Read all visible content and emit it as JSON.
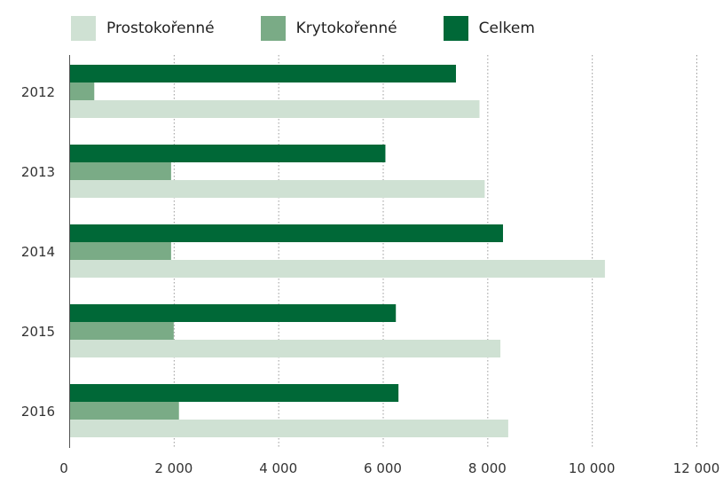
{
  "chart_data": {
    "type": "bar",
    "orientation": "horizontal",
    "categories": [
      "2012",
      "2013",
      "2014",
      "2015",
      "2016"
    ],
    "series": [
      {
        "name": "Celkem",
        "color": "#006837",
        "values": [
          7400,
          6050,
          8300,
          6250,
          6300
        ]
      },
      {
        "name": "Krytokořenné",
        "color": "#7aab86",
        "values": [
          480,
          1950,
          1950,
          2000,
          2100
        ]
      },
      {
        "name": "Prostokořenné",
        "color": "#cfe1d3",
        "values": [
          7850,
          7950,
          10250,
          8250,
          8400
        ]
      }
    ],
    "legend_order": [
      "Prostokořenné",
      "Krytokořenné",
      "Celkem"
    ],
    "xlim": [
      0,
      12000
    ],
    "xticks": [
      0,
      2000,
      4000,
      6000,
      8000,
      10000,
      12000
    ],
    "xtick_labels": [
      "0",
      "2 000",
      "4 000",
      "6 000",
      "8 000",
      "10 000",
      "12 000"
    ],
    "grid": "vertical dotted",
    "legend_position": "top",
    "title": "",
    "xlabel": "",
    "ylabel": ""
  }
}
